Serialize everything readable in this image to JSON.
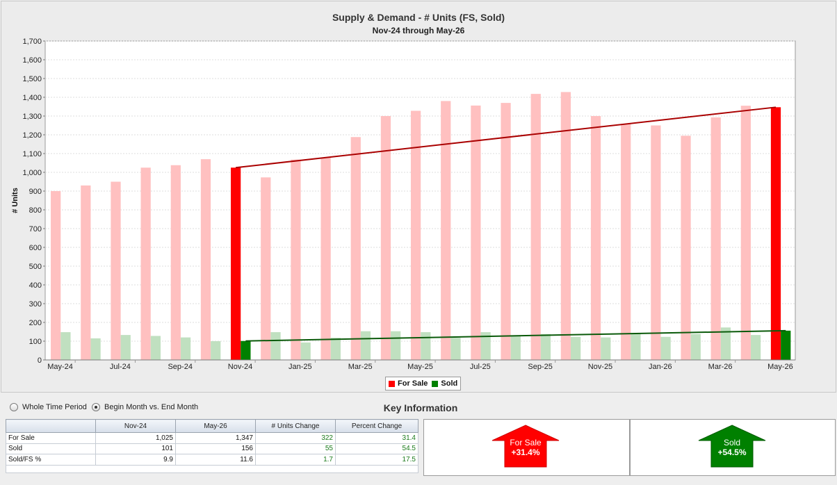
{
  "chart_data": {
    "type": "bar",
    "title": "Supply & Demand - # Units (FS, Sold)",
    "subtitle": "Nov-24 through May-26",
    "ylabel": "# Units",
    "ylim": [
      0,
      1700
    ],
    "yticks": [
      "0",
      "100",
      "200",
      "300",
      "400",
      "500",
      "600",
      "700",
      "800",
      "900",
      "1,000",
      "1,100",
      "1,200",
      "1,300",
      "1,400",
      "1,500",
      "1,600",
      "1,700"
    ],
    "grid": true,
    "legend_position": "bottom",
    "categories": [
      "May-24",
      "Jun-24",
      "Jul-24",
      "Aug-24",
      "Sep-24",
      "Oct-24",
      "Nov-24",
      "Dec-24",
      "Jan-25",
      "Feb-25",
      "Mar-25",
      "Apr-25",
      "May-25",
      "Jun-25",
      "Jul-25",
      "Aug-25",
      "Sep-25",
      "Oct-25",
      "Nov-25",
      "Dec-25",
      "Jan-26",
      "Feb-26",
      "Mar-26",
      "Apr-26",
      "May-26"
    ],
    "tick_labels": [
      "May-24",
      "Jul-24",
      "Sep-24",
      "Nov-24",
      "Jan-25",
      "Mar-25",
      "May-25",
      "Jul-25",
      "Sep-25",
      "Nov-25",
      "Jan-26",
      "Mar-26",
      "May-26"
    ],
    "series": [
      {
        "name": "For Sale",
        "color": "#ff0000",
        "faded_color": "#ffc0c0",
        "values": [
          900,
          930,
          950,
          1025,
          1038,
          1070,
          1025,
          973,
          1068,
          1078,
          1188,
          1300,
          1328,
          1380,
          1356,
          1370,
          1418,
          1428,
          1300,
          1258,
          1250,
          1195,
          1293,
          1355,
          1347
        ]
      },
      {
        "name": "Sold",
        "color": "#008000",
        "faded_color": "#c0e0c0",
        "values": [
          148,
          115,
          133,
          128,
          120,
          100,
          101,
          148,
          93,
          118,
          153,
          153,
          148,
          118,
          148,
          128,
          138,
          123,
          120,
          143,
          123,
          138,
          173,
          133,
          156
        ]
      }
    ],
    "highlight_range": [
      "Nov-24",
      "May-26"
    ],
    "trendlines": [
      {
        "series": "For Sale",
        "from": 1025,
        "to": 1347,
        "color": "#aa0000"
      },
      {
        "series": "Sold",
        "from": 101,
        "to": 156,
        "color": "#0a5a0a"
      }
    ]
  },
  "options": {
    "whole_period_label": "Whole Time Period",
    "begin_end_label": "Begin Month vs. End Month",
    "selected": "begin_end"
  },
  "key": {
    "title": "Key Information",
    "headers": [
      "",
      "Nov-24",
      "May-26",
      "# Units Change",
      "Percent Change"
    ],
    "rows": [
      {
        "label": "For Sale",
        "start": "1,025",
        "end": "1,347",
        "change": "322",
        "pct": "31.4"
      },
      {
        "label": "Sold",
        "start": "101",
        "end": "156",
        "change": "55",
        "pct": "54.5"
      },
      {
        "label": "Sold/FS %",
        "start": "9.9",
        "end": "11.6",
        "change": "1.7",
        "pct": "17.5"
      }
    ],
    "for_sale_card": {
      "label": "For Sale",
      "value": "+31.4%",
      "color": "#ff0000",
      "direction": "up"
    },
    "sold_card": {
      "label": "Sold",
      "value": "+54.5%",
      "color": "#008000",
      "direction": "up"
    }
  }
}
